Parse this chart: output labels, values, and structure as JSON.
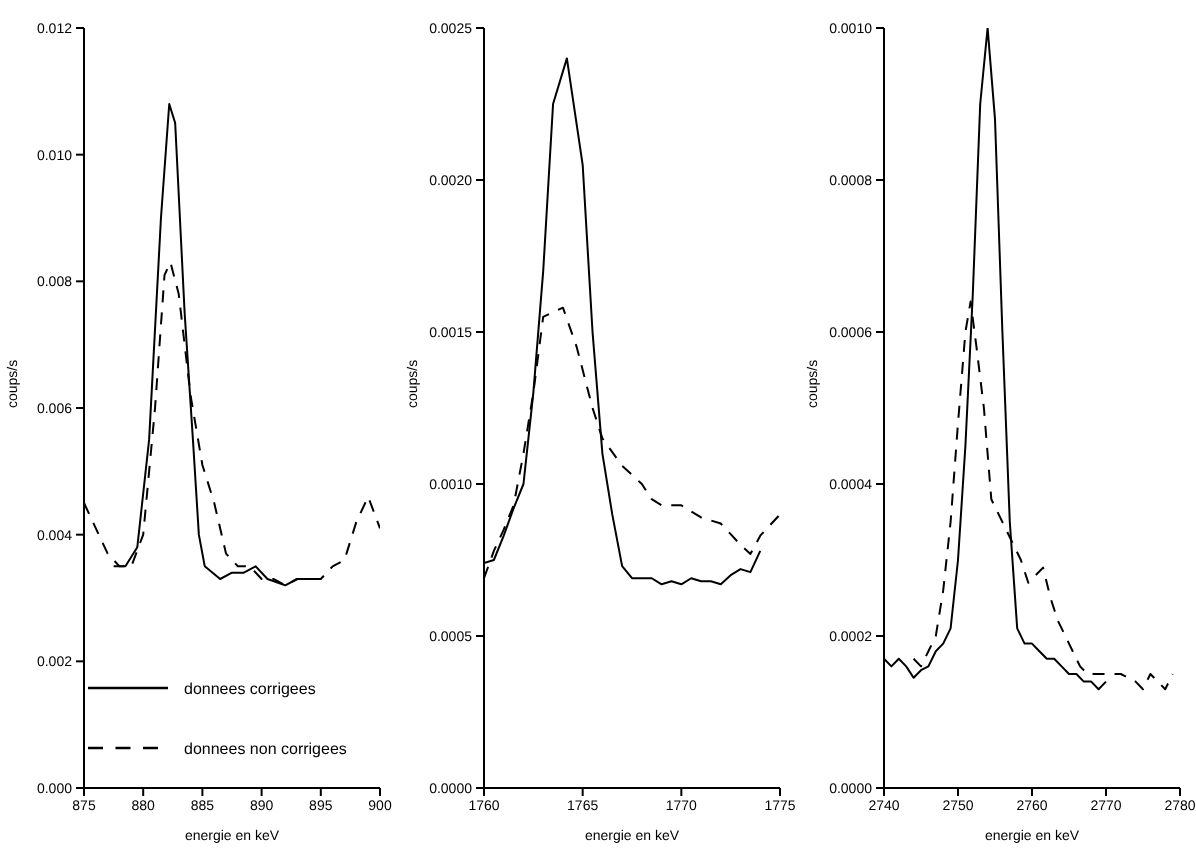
{
  "chart_data": [
    {
      "type": "line",
      "xlabel": "energie en keV",
      "ylabel": "coups/s",
      "xlim": [
        875,
        900
      ],
      "xticks": [
        875,
        880,
        885,
        890,
        895,
        900
      ],
      "ylim": [
        0,
        0.012
      ],
      "yticks": [
        {
          "value": 0,
          "label": "0.000"
        },
        {
          "value": 0.002,
          "label": "0.002"
        },
        {
          "value": 0.004,
          "label": "0.004"
        },
        {
          "value": 0.006,
          "label": "0.006"
        },
        {
          "value": 0.008,
          "label": "0.008"
        },
        {
          "value": 0.01,
          "label": "0.010"
        },
        {
          "value": 0.012,
          "label": "0.012"
        }
      ],
      "grid": false,
      "legend": "bottom left",
      "marker": "none",
      "series": [
        {
          "name": "donnees corrigees",
          "color": "#000000",
          "line_style": "solid",
          "x": [
            877.5,
            878.5,
            879.5,
            880.5,
            881.5,
            882.2,
            882.7,
            883.5,
            884.2,
            884.7,
            885.2,
            886.5,
            887.5,
            888.5,
            889.5,
            890.5,
            892,
            893,
            894.5
          ],
          "values": [
            0.0035,
            0.0035,
            0.0038,
            0.0055,
            0.009,
            0.0108,
            0.0105,
            0.0075,
            0.0055,
            0.004,
            0.0035,
            0.0033,
            0.0034,
            0.0034,
            0.0035,
            0.0033,
            0.0032,
            0.0033,
            0.0033
          ]
        },
        {
          "name": "donnees non corrigees",
          "color": "#000000",
          "line_style": "dashed",
          "x": [
            875,
            876,
            877,
            878,
            879,
            880,
            881,
            881.8,
            882.3,
            883,
            884,
            885,
            886,
            887,
            888,
            889,
            890,
            891,
            892,
            893,
            895,
            896,
            897,
            898,
            899,
            900
          ],
          "values": [
            0.0045,
            0.0041,
            0.0037,
            0.0035,
            0.0035,
            0.004,
            0.006,
            0.0081,
            0.0083,
            0.0078,
            0.0062,
            0.0051,
            0.0045,
            0.0037,
            0.0035,
            0.0035,
            0.0033,
            0.0033,
            0.0032,
            0.0033,
            0.0033,
            0.0035,
            0.0036,
            0.0042,
            0.0046,
            0.0041
          ]
        }
      ]
    },
    {
      "type": "line",
      "xlabel": "energie en keV",
      "ylabel": "coups/s",
      "xlim": [
        1760,
        1775
      ],
      "xticks": [
        1760,
        1765,
        1770,
        1775
      ],
      "ylim": [
        0,
        0.0025
      ],
      "yticks": [
        {
          "value": 0,
          "label": "0.0000"
        },
        {
          "value": 0.0005,
          "label": "0.0005"
        },
        {
          "value": 0.001,
          "label": "0.0010"
        },
        {
          "value": 0.0015,
          "label": "0.0015"
        },
        {
          "value": 0.002,
          "label": "0.0020"
        },
        {
          "value": 0.0025,
          "label": "0.0025"
        }
      ],
      "grid": false,
      "marker": "none",
      "series": [
        {
          "color": "#000000",
          "line_style": "solid",
          "x": [
            1760,
            1760.5,
            1761,
            1761.5,
            1762,
            1762.5,
            1763,
            1763.5,
            1764.2,
            1765,
            1765.5,
            1766,
            1766.5,
            1767,
            1767.5,
            1768.5,
            1769,
            1769.5,
            1770,
            1770.5,
            1771,
            1771.5,
            1772,
            1772.5,
            1773,
            1773.5,
            1774
          ],
          "values": [
            0.00074,
            0.00075,
            0.00083,
            0.00092,
            0.001,
            0.0013,
            0.0017,
            0.00225,
            0.0024,
            0.00205,
            0.0015,
            0.0011,
            0.0009,
            0.00073,
            0.00069,
            0.00069,
            0.00067,
            0.00068,
            0.00067,
            0.00069,
            0.00068,
            0.00068,
            0.00067,
            0.0007,
            0.00072,
            0.00071,
            0.00078
          ]
        },
        {
          "color": "#000000",
          "line_style": "dashed",
          "x": [
            1760,
            1760.5,
            1761,
            1761.5,
            1762,
            1762.5,
            1763,
            1764,
            1764.7,
            1765.5,
            1766,
            1767,
            1768,
            1768.5,
            1769,
            1770,
            1771,
            1772,
            1773,
            1773.5,
            1774,
            1775
          ],
          "values": [
            0.00069,
            0.00078,
            0.00085,
            0.00093,
            0.0011,
            0.0013,
            0.00155,
            0.00158,
            0.00145,
            0.00125,
            0.00115,
            0.00106,
            0.001,
            0.00095,
            0.00093,
            0.00093,
            0.00089,
            0.00087,
            0.0008,
            0.00077,
            0.00083,
            0.0009
          ]
        }
      ]
    },
    {
      "type": "line",
      "xlabel": "energie en keV",
      "ylabel": "coups/s",
      "xlim": [
        2740,
        2780
      ],
      "xticks": [
        2740,
        2750,
        2760,
        2770,
        2780
      ],
      "ylim": [
        0,
        0.001
      ],
      "yticks": [
        {
          "value": 0,
          "label": "0.0000"
        },
        {
          "value": 0.0002,
          "label": "0.0002"
        },
        {
          "value": 0.0004,
          "label": "0.0004"
        },
        {
          "value": 0.0006,
          "label": "0.0006"
        },
        {
          "value": 0.0008,
          "label": "0.0008"
        },
        {
          "value": 0.001,
          "label": "0.0010"
        }
      ],
      "grid": false,
      "marker": "none",
      "series": [
        {
          "color": "#000000",
          "line_style": "solid",
          "x": [
            2740,
            2741,
            2742,
            2743,
            2744,
            2745,
            2746,
            2747,
            2748,
            2749,
            2750,
            2751,
            2752,
            2753,
            2754,
            2755,
            2756,
            2757,
            2758,
            2759,
            2760,
            2761,
            2762,
            2763,
            2764,
            2765,
            2766,
            2767,
            2768,
            2769,
            2770
          ],
          "values": [
            0.00017,
            0.00016,
            0.00017,
            0.00016,
            0.000145,
            0.000155,
            0.00016,
            0.00018,
            0.00019,
            0.00021,
            0.0003,
            0.00045,
            0.00065,
            0.0009,
            0.001,
            0.00088,
            0.0006,
            0.00035,
            0.00021,
            0.00019,
            0.00019,
            0.00018,
            0.00017,
            0.00017,
            0.00016,
            0.00015,
            0.00015,
            0.00014,
            0.00014,
            0.00013,
            0.00014
          ]
        },
        {
          "color": "#000000",
          "line_style": "dashed",
          "x": [
            2744,
            2745,
            2746,
            2747,
            2748,
            2749,
            2750,
            2751,
            2751.7,
            2752.5,
            2753.5,
            2754.5,
            2755.5,
            2756.5,
            2757.5,
            2758.5,
            2759.5,
            2760.5,
            2761.5,
            2762.5,
            2763.5,
            2764.5,
            2765.5,
            2766.5,
            2767.5,
            2768.5,
            2770,
            2772,
            2774,
            2775,
            2776,
            2777,
            2778,
            2779
          ],
          "values": [
            0.00017,
            0.00016,
            0.00018,
            0.0002,
            0.00026,
            0.00035,
            0.00048,
            0.0006,
            0.00064,
            0.00058,
            0.0005,
            0.00038,
            0.00036,
            0.00034,
            0.00032,
            0.0003,
            0.00027,
            0.00028,
            0.00029,
            0.00025,
            0.00022,
            0.0002,
            0.00018,
            0.00016,
            0.00015,
            0.00015,
            0.00015,
            0.00015,
            0.00014,
            0.00013,
            0.00015,
            0.00014,
            0.00013,
            0.00015
          ]
        }
      ]
    }
  ]
}
